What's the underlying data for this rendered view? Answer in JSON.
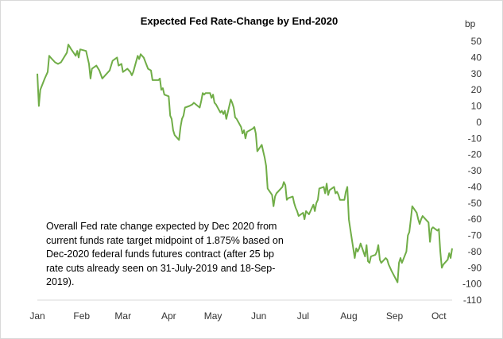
{
  "chart_data": {
    "type": "line",
    "title": "Expected Fed Rate-Change by End-2020",
    "unit": "bp",
    "xlabel": "",
    "ylabel": "",
    "ylim": [
      -110,
      50
    ],
    "y_ticks": [
      50,
      40,
      30,
      20,
      10,
      0,
      -10,
      -20,
      -30,
      -40,
      -50,
      -60,
      -70,
      -80,
      -90,
      -100,
      -110
    ],
    "x_tick_labels": [
      "Jan",
      "Feb",
      "Mar",
      "Apr",
      "May",
      "Jun",
      "Jul",
      "Aug",
      "Sep",
      "Oct"
    ],
    "x_range": [
      "2019-01-02",
      "2019-10-10"
    ],
    "grid": false,
    "line_color": "#70ad47",
    "annotation": "Overall Fed rate change expected by Dec 2020 from current funds rate target midpoint of 1.875% based on Dec-2020 federal funds futures contract (after 25 bp rate cuts already seen on 31-July-2019 and 18-Sep-2019).",
    "series": [
      {
        "points": [
          [
            "2019-01-02",
            30
          ],
          [
            "2019-01-03",
            10
          ],
          [
            "2019-01-04",
            20
          ],
          [
            "2019-01-07",
            27
          ],
          [
            "2019-01-09",
            31
          ],
          [
            "2019-01-10",
            41
          ],
          [
            "2019-01-11",
            40
          ],
          [
            "2019-01-14",
            37
          ],
          [
            "2019-01-16",
            36
          ],
          [
            "2019-01-18",
            37
          ],
          [
            "2019-01-22",
            43
          ],
          [
            "2019-01-23",
            48
          ],
          [
            "2019-01-25",
            45
          ],
          [
            "2019-01-28",
            41
          ],
          [
            "2019-01-29",
            44
          ],
          [
            "2019-01-30",
            40
          ],
          [
            "2019-01-31",
            45
          ],
          [
            "2019-02-04",
            44
          ],
          [
            "2019-02-06",
            36
          ],
          [
            "2019-02-07",
            27
          ],
          [
            "2019-02-08",
            33
          ],
          [
            "2019-02-11",
            35
          ],
          [
            "2019-02-13",
            32
          ],
          [
            "2019-02-15",
            27
          ],
          [
            "2019-02-18",
            30
          ],
          [
            "2019-02-20",
            32
          ],
          [
            "2019-02-22",
            38
          ],
          [
            "2019-02-25",
            40
          ],
          [
            "2019-02-26",
            35
          ],
          [
            "2019-02-28",
            36
          ],
          [
            "2019-03-01",
            31
          ],
          [
            "2019-03-04",
            33
          ],
          [
            "2019-03-06",
            31
          ],
          [
            "2019-03-07",
            29
          ],
          [
            "2019-03-08",
            31
          ],
          [
            "2019-03-11",
            41
          ],
          [
            "2019-03-12",
            39
          ],
          [
            "2019-03-13",
            42
          ],
          [
            "2019-03-15",
            40
          ],
          [
            "2019-03-18",
            33
          ],
          [
            "2019-03-20",
            32
          ],
          [
            "2019-03-21",
            26
          ],
          [
            "2019-03-22",
            26
          ],
          [
            "2019-03-25",
            26
          ],
          [
            "2019-03-26",
            27
          ],
          [
            "2019-03-27",
            20
          ],
          [
            "2019-03-28",
            21
          ],
          [
            "2019-03-29",
            17
          ],
          [
            "2019-04-01",
            16
          ],
          [
            "2019-04-02",
            4
          ],
          [
            "2019-04-03",
            2
          ],
          [
            "2019-04-04",
            -5
          ],
          [
            "2019-04-05",
            -8
          ],
          [
            "2019-04-08",
            -11
          ],
          [
            "2019-04-09",
            -3
          ],
          [
            "2019-04-10",
            2
          ],
          [
            "2019-04-11",
            4
          ],
          [
            "2019-04-12",
            9
          ],
          [
            "2019-04-15",
            10
          ],
          [
            "2019-04-17",
            11
          ],
          [
            "2019-04-18",
            12
          ],
          [
            "2019-04-22",
            9
          ],
          [
            "2019-04-23",
            13
          ],
          [
            "2019-04-24",
            18
          ],
          [
            "2019-04-25",
            17
          ],
          [
            "2019-04-26",
            18
          ],
          [
            "2019-04-29",
            18
          ],
          [
            "2019-04-30",
            15
          ],
          [
            "2019-05-01",
            17
          ],
          [
            "2019-05-02",
            12
          ],
          [
            "2019-05-03",
            11
          ],
          [
            "2019-05-06",
            6
          ],
          [
            "2019-05-07",
            7
          ],
          [
            "2019-05-08",
            5
          ],
          [
            "2019-05-09",
            7
          ],
          [
            "2019-05-10",
            2
          ],
          [
            "2019-05-13",
            14
          ],
          [
            "2019-05-14",
            12
          ],
          [
            "2019-05-15",
            9
          ],
          [
            "2019-05-16",
            3
          ],
          [
            "2019-05-17",
            2
          ],
          [
            "2019-05-20",
            -3
          ],
          [
            "2019-05-21",
            -7
          ],
          [
            "2019-05-22",
            -5
          ],
          [
            "2019-05-23",
            -10
          ],
          [
            "2019-05-24",
            -6
          ],
          [
            "2019-05-28",
            -4
          ],
          [
            "2019-05-29",
            -3
          ],
          [
            "2019-05-30",
            -7
          ],
          [
            "2019-05-31",
            -18
          ],
          [
            "2019-06-03",
            -14
          ],
          [
            "2019-06-04",
            -18
          ],
          [
            "2019-06-05",
            -22
          ],
          [
            "2019-06-06",
            -27
          ],
          [
            "2019-06-07",
            -41
          ],
          [
            "2019-06-10",
            -45
          ],
          [
            "2019-06-11",
            -52
          ],
          [
            "2019-06-12",
            -46
          ],
          [
            "2019-06-13",
            -44
          ],
          [
            "2019-06-14",
            -43
          ],
          [
            "2019-06-17",
            -40
          ],
          [
            "2019-06-18",
            -37
          ],
          [
            "2019-06-19",
            -39
          ],
          [
            "2019-06-20",
            -48
          ],
          [
            "2019-06-21",
            -47
          ],
          [
            "2019-06-24",
            -46
          ],
          [
            "2019-06-25",
            -50
          ],
          [
            "2019-06-26",
            -53
          ],
          [
            "2019-06-27",
            -55
          ],
          [
            "2019-06-28",
            -58
          ],
          [
            "2019-07-01",
            -56
          ],
          [
            "2019-07-02",
            -60
          ],
          [
            "2019-07-03",
            -55
          ],
          [
            "2019-07-05",
            -57
          ],
          [
            "2019-07-08",
            -51
          ],
          [
            "2019-07-09",
            -55
          ],
          [
            "2019-07-10",
            -50
          ],
          [
            "2019-07-11",
            -48
          ],
          [
            "2019-07-12",
            -41
          ],
          [
            "2019-07-15",
            -40
          ],
          [
            "2019-07-16",
            -44
          ],
          [
            "2019-07-17",
            -38
          ],
          [
            "2019-07-18",
            -45
          ],
          [
            "2019-07-19",
            -42
          ],
          [
            "2019-07-22",
            -40
          ],
          [
            "2019-07-23",
            -44
          ],
          [
            "2019-07-24",
            -43
          ],
          [
            "2019-07-25",
            -45
          ],
          [
            "2019-07-26",
            -48
          ],
          [
            "2019-07-29",
            -48
          ],
          [
            "2019-07-30",
            -43
          ],
          [
            "2019-07-31",
            -40
          ],
          [
            "2019-08-01",
            -60
          ],
          [
            "2019-08-02",
            -66
          ],
          [
            "2019-08-05",
            -84
          ],
          [
            "2019-08-06",
            -78
          ],
          [
            "2019-08-07",
            -80
          ],
          [
            "2019-08-08",
            -78
          ],
          [
            "2019-08-09",
            -75
          ],
          [
            "2019-08-12",
            -83
          ],
          [
            "2019-08-13",
            -76
          ],
          [
            "2019-08-14",
            -86
          ],
          [
            "2019-08-15",
            -87
          ],
          [
            "2019-08-16",
            -83
          ],
          [
            "2019-08-19",
            -82
          ],
          [
            "2019-08-20",
            -80
          ],
          [
            "2019-08-21",
            -76
          ],
          [
            "2019-08-22",
            -85
          ],
          [
            "2019-08-23",
            -87
          ],
          [
            "2019-08-26",
            -84
          ],
          [
            "2019-08-27",
            -85
          ],
          [
            "2019-08-28",
            -88
          ],
          [
            "2019-08-29",
            -90
          ],
          [
            "2019-08-30",
            -92
          ],
          [
            "2019-09-03",
            -99
          ],
          [
            "2019-09-04",
            -87
          ],
          [
            "2019-09-05",
            -84
          ],
          [
            "2019-09-06",
            -87
          ],
          [
            "2019-09-09",
            -80
          ],
          [
            "2019-09-10",
            -70
          ],
          [
            "2019-09-11",
            -68
          ],
          [
            "2019-09-12",
            -60
          ],
          [
            "2019-09-13",
            -52
          ],
          [
            "2019-09-16",
            -56
          ],
          [
            "2019-09-17",
            -60
          ],
          [
            "2019-09-18",
            -63
          ],
          [
            "2019-09-19",
            -60
          ],
          [
            "2019-09-20",
            -58
          ],
          [
            "2019-09-23",
            -61
          ],
          [
            "2019-09-24",
            -62
          ],
          [
            "2019-09-25",
            -74
          ],
          [
            "2019-09-26",
            -66
          ],
          [
            "2019-09-27",
            -65
          ],
          [
            "2019-09-30",
            -67
          ],
          [
            "2019-10-01",
            -66
          ],
          [
            "2019-10-02",
            -80
          ],
          [
            "2019-10-03",
            -90
          ],
          [
            "2019-10-04",
            -88
          ],
          [
            "2019-10-07",
            -85
          ],
          [
            "2019-10-08",
            -81
          ],
          [
            "2019-10-09",
            -84
          ],
          [
            "2019-10-10",
            -78
          ]
        ]
      }
    ]
  }
}
